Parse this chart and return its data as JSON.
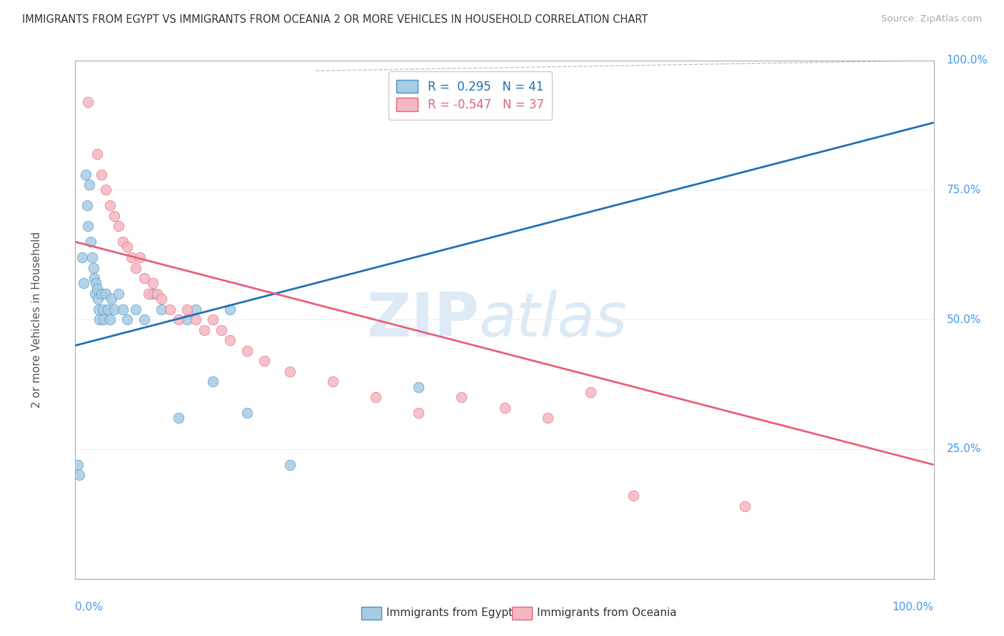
{
  "title": "IMMIGRANTS FROM EGYPT VS IMMIGRANTS FROM OCEANIA 2 OR MORE VEHICLES IN HOUSEHOLD CORRELATION CHART",
  "source": "Source: ZipAtlas.com",
  "ylabel_label": "2 or more Vehicles in Household",
  "legend_egypt": "Immigrants from Egypt",
  "legend_oceania": "Immigrants from Oceania",
  "R_egypt": 0.295,
  "N_egypt": 41,
  "R_oceania": -0.547,
  "N_oceania": 37,
  "egypt_color": "#a8cce4",
  "egypt_edge_color": "#4a90c4",
  "egypt_line_color": "#2171b5",
  "oceania_color": "#f5b8c0",
  "oceania_edge_color": "#e8607a",
  "oceania_line_color": "#e8607a",
  "diag_line_color": "#aaaacc",
  "watermark_color": "#ddeaf5",
  "grid_color": "#e8e8e8",
  "right_axis_color": "#4499ee",
  "egypt_x": [
    0.3,
    0.5,
    0.8,
    1.0,
    1.2,
    1.4,
    1.5,
    1.6,
    1.8,
    2.0,
    2.1,
    2.2,
    2.3,
    2.4,
    2.5,
    2.6,
    2.7,
    2.8,
    3.0,
    3.2,
    3.3,
    3.5,
    3.8,
    4.0,
    4.2,
    4.5,
    5.0,
    5.5,
    6.0,
    7.0,
    8.0,
    9.0,
    10.0,
    12.0,
    13.0,
    14.0,
    16.0,
    18.0,
    20.0,
    25.0,
    40.0
  ],
  "egypt_y": [
    22.0,
    20.0,
    62.0,
    57.0,
    78.0,
    72.0,
    68.0,
    76.0,
    65.0,
    62.0,
    60.0,
    58.0,
    55.0,
    57.0,
    56.0,
    54.0,
    52.0,
    50.0,
    55.0,
    52.0,
    50.0,
    55.0,
    52.0,
    50.0,
    54.0,
    52.0,
    55.0,
    52.0,
    50.0,
    52.0,
    50.0,
    55.0,
    52.0,
    31.0,
    50.0,
    52.0,
    38.0,
    52.0,
    32.0,
    22.0,
    37.0
  ],
  "oceania_x": [
    1.5,
    2.5,
    3.0,
    3.5,
    4.0,
    4.5,
    5.0,
    5.5,
    6.0,
    6.5,
    7.0,
    7.5,
    8.0,
    8.5,
    9.0,
    9.5,
    10.0,
    11.0,
    12.0,
    13.0,
    14.0,
    15.0,
    16.0,
    17.0,
    18.0,
    20.0,
    22.0,
    25.0,
    30.0,
    35.0,
    40.0,
    45.0,
    50.0,
    55.0,
    60.0,
    65.0,
    78.0
  ],
  "oceania_y": [
    92.0,
    82.0,
    78.0,
    75.0,
    72.0,
    70.0,
    68.0,
    65.0,
    64.0,
    62.0,
    60.0,
    62.0,
    58.0,
    55.0,
    57.0,
    55.0,
    54.0,
    52.0,
    50.0,
    52.0,
    50.0,
    48.0,
    50.0,
    48.0,
    46.0,
    44.0,
    42.0,
    40.0,
    38.0,
    35.0,
    32.0,
    35.0,
    33.0,
    31.0,
    36.0,
    16.0,
    14.0
  ],
  "egypt_line_x0": 0,
  "egypt_line_y0": 45,
  "egypt_line_x1": 100,
  "egypt_line_y1": 88,
  "oceania_line_x0": 0,
  "oceania_line_y0": 65,
  "oceania_line_x1": 100,
  "oceania_line_y1": 22,
  "diag_x0": 30,
  "diag_y0": 100,
  "diag_x1": 100,
  "diag_y1": 100,
  "xlim": [
    0,
    100
  ],
  "ylim": [
    0,
    100
  ]
}
